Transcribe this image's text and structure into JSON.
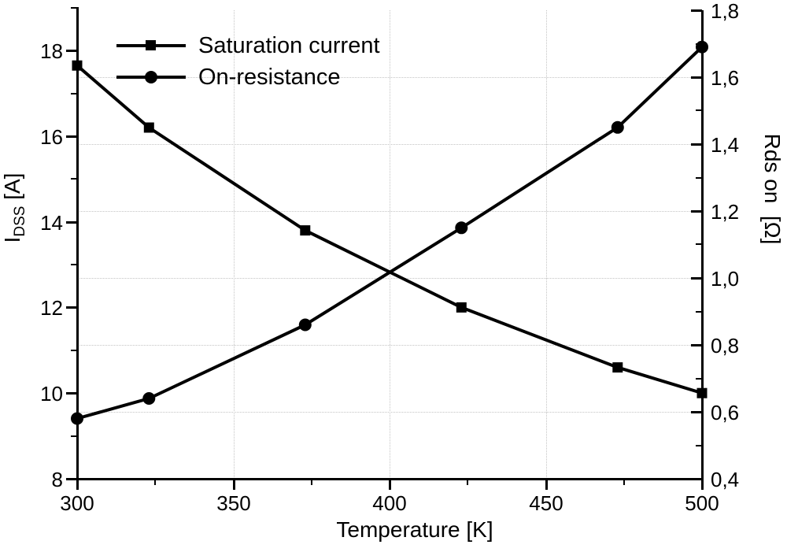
{
  "chart_data": {
    "type": "line",
    "title": "",
    "xlabel": "Temperature [K]",
    "ylabel_left": {
      "main": "I",
      "sub": "DSS",
      "unit": " [A]"
    },
    "ylabel_right": "Rds on  [Ω]",
    "xlim": [
      300,
      500
    ],
    "left_ylim": [
      8,
      18.94
    ],
    "right_ylim": [
      0.4,
      1.8
    ],
    "x_major_ticks": [
      {
        "v": 300,
        "label": "300"
      },
      {
        "v": 350,
        "label": "350"
      },
      {
        "v": 400,
        "label": "400"
      },
      {
        "v": 450,
        "label": "450"
      },
      {
        "v": 500,
        "label": "500"
      }
    ],
    "x_minor_ticks": [
      325,
      375,
      425,
      475
    ],
    "left_major_ticks": [
      {
        "v": 8,
        "label": "8"
      },
      {
        "v": 10,
        "label": "10"
      },
      {
        "v": 12,
        "label": "12"
      },
      {
        "v": 14,
        "label": "14"
      },
      {
        "v": 16,
        "label": "16"
      },
      {
        "v": 18,
        "label": "18"
      }
    ],
    "left_minor_ticks": [
      9,
      11,
      13,
      15,
      17,
      19
    ],
    "right_major_ticks": [
      {
        "v": 0.4,
        "label": "0,4"
      },
      {
        "v": 0.6,
        "label": "0,6"
      },
      {
        "v": 0.8,
        "label": "0,8"
      },
      {
        "v": 1.0,
        "label": "1,0"
      },
      {
        "v": 1.2,
        "label": "1,2"
      },
      {
        "v": 1.4,
        "label": "1,4"
      },
      {
        "v": 1.6,
        "label": "1,6"
      },
      {
        "v": 1.8,
        "label": "1,8"
      }
    ],
    "right_minor_ticks": [
      0.5,
      0.7,
      0.9,
      1.1,
      1.3,
      1.5,
      1.7
    ],
    "grid": {
      "style": "dotted",
      "vertical_x": [
        350,
        400,
        450
      ],
      "horizontal_right_values": [
        0.6,
        0.8,
        1.0,
        1.2,
        1.4,
        1.6
      ]
    },
    "legend_position": "top-left-inside",
    "series": [
      {
        "name": "Saturation current",
        "axis": "left",
        "marker": "square",
        "points": [
          {
            "x": 300,
            "y": 17.65
          },
          {
            "x": 323,
            "y": 16.2
          },
          {
            "x": 373,
            "y": 13.8
          },
          {
            "x": 423,
            "y": 12.0
          },
          {
            "x": 473,
            "y": 10.6
          },
          {
            "x": 500,
            "y": 10.0
          }
        ]
      },
      {
        "name": "On-resistance",
        "axis": "right",
        "marker": "circle",
        "points": [
          {
            "x": 300,
            "y": 0.58
          },
          {
            "x": 323,
            "y": 0.64
          },
          {
            "x": 373,
            "y": 0.86
          },
          {
            "x": 423,
            "y": 1.15
          },
          {
            "x": 473,
            "y": 1.45
          },
          {
            "x": 500,
            "y": 1.69
          }
        ]
      }
    ],
    "colors": {
      "line": "#000000",
      "grid": "#c4c4c4",
      "background": "#ffffff"
    }
  }
}
